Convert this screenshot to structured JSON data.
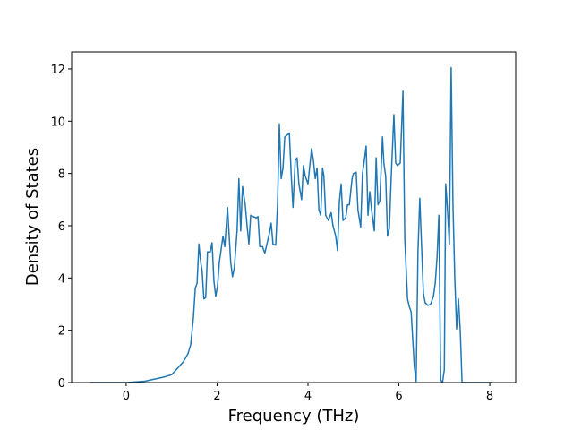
{
  "chart_data": {
    "type": "line",
    "xlabel": "Frequency (THz)",
    "ylabel": "Density of States",
    "x": [
      -0.79,
      0,
      0.41,
      0.81,
      1.0,
      1.16,
      1.26,
      1.36,
      1.42,
      1.48,
      1.52,
      1.56,
      1.6,
      1.64,
      1.67,
      1.71,
      1.75,
      1.79,
      1.85,
      1.89,
      1.93,
      1.97,
      2.01,
      2.05,
      2.13,
      2.17,
      2.23,
      2.27,
      2.3,
      2.34,
      2.38,
      2.44,
      2.48,
      2.52,
      2.56,
      2.62,
      2.66,
      2.7,
      2.74,
      2.8,
      2.86,
      2.9,
      2.94,
      3.0,
      3.05,
      3.11,
      3.15,
      3.19,
      3.23,
      3.29,
      3.33,
      3.37,
      3.41,
      3.45,
      3.49,
      3.53,
      3.59,
      3.63,
      3.67,
      3.72,
      3.76,
      3.8,
      3.86,
      3.9,
      3.94,
      4.0,
      4.04,
      4.08,
      4.12,
      4.16,
      4.2,
      4.24,
      4.28,
      4.32,
      4.35,
      4.39,
      4.45,
      4.51,
      4.55,
      4.61,
      4.65,
      4.69,
      4.73,
      4.77,
      4.83,
      4.87,
      4.91,
      4.97,
      5.0,
      5.06,
      5.1,
      5.16,
      5.2,
      5.24,
      5.28,
      5.32,
      5.36,
      5.4,
      5.46,
      5.5,
      5.54,
      5.58,
      5.64,
      5.67,
      5.71,
      5.75,
      5.79,
      5.83,
      5.89,
      5.93,
      5.97,
      6.03,
      6.09,
      6.13,
      6.19,
      6.23,
      6.27,
      6.31,
      6.34,
      6.38,
      6.42,
      6.46,
      6.5,
      6.54,
      6.58,
      6.64,
      6.7,
      6.76,
      6.8,
      6.84,
      6.88,
      6.92,
      6.96,
      7.0,
      7.03,
      7.07,
      7.11,
      7.15,
      7.19,
      7.23,
      7.27,
      7.31,
      7.35,
      7.39,
      7.67,
      8.06
    ],
    "values": [
      0,
      0,
      0.05,
      0.2,
      0.3,
      0.6,
      0.8,
      1.1,
      1.45,
      2.5,
      3.6,
      3.8,
      5.3,
      4.6,
      4.3,
      3.2,
      3.25,
      5.0,
      5.0,
      5.35,
      3.9,
      3.3,
      3.7,
      4.6,
      5.6,
      5.2,
      6.7,
      5.5,
      4.6,
      4.05,
      4.4,
      5.8,
      7.8,
      5.8,
      7.5,
      6.8,
      6.0,
      5.3,
      6.4,
      6.35,
      6.3,
      6.35,
      5.2,
      5.2,
      4.95,
      5.4,
      5.7,
      6.1,
      5.3,
      5.25,
      6.8,
      9.9,
      7.8,
      8.2,
      9.4,
      9.45,
      9.55,
      8.0,
      6.7,
      8.5,
      8.6,
      7.6,
      7.0,
      8.3,
      7.9,
      7.6,
      8.3,
      8.95,
      8.5,
      7.8,
      8.2,
      6.6,
      6.4,
      8.2,
      7.9,
      6.4,
      6.2,
      6.5,
      6.0,
      5.6,
      5.05,
      6.9,
      7.6,
      6.2,
      6.3,
      6.8,
      6.8,
      7.8,
      8.0,
      8.05,
      6.6,
      5.95,
      8.0,
      8.5,
      9.05,
      6.4,
      7.3,
      6.6,
      5.8,
      8.6,
      6.8,
      6.95,
      9.4,
      8.4,
      7.9,
      5.6,
      5.9,
      7.8,
      10.25,
      8.4,
      8.3,
      8.4,
      11.15,
      5.5,
      3.2,
      2.9,
      2.7,
      1.5,
      0.6,
      0.05,
      5.0,
      7.05,
      5.2,
      3.4,
      3.05,
      2.95,
      3.0,
      3.3,
      3.8,
      4.8,
      6.4,
      0.1,
      0,
      0.5,
      7.6,
      6.6,
      5.3,
      12.05,
      6.8,
      4.0,
      2.05,
      3.2,
      2.0,
      0,
      0,
      0
    ],
    "color": "#1f77b4",
    "xlim": [
      -1.2,
      8.57
    ],
    "xticks": [
      0,
      2,
      4,
      6,
      8
    ],
    "ylim": [
      0,
      12.65
    ],
    "yticks": [
      0,
      2,
      4,
      6,
      8,
      10,
      12
    ]
  }
}
